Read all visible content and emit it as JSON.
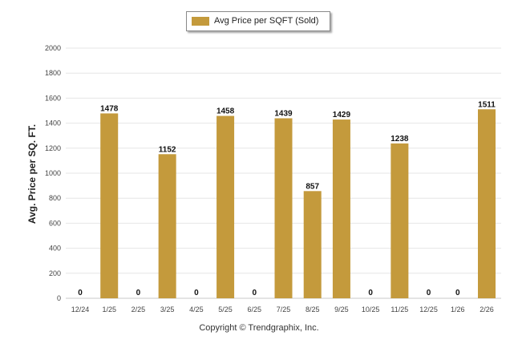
{
  "chart_data": {
    "type": "bar",
    "legend": "Avg Price per SQFT (Sold)",
    "ylabel": "Avg. Price per SQ. FT.",
    "xlabel": "",
    "categories": [
      "12/24",
      "1/25",
      "2/25",
      "3/25",
      "4/25",
      "5/25",
      "6/25",
      "7/25",
      "8/25",
      "9/25",
      "10/25",
      "11/25",
      "12/25",
      "1/26",
      "2/26"
    ],
    "values": [
      0,
      1478,
      0,
      1152,
      0,
      1458,
      0,
      1439,
      857,
      1429,
      0,
      1238,
      0,
      0,
      1511
    ],
    "ylim": [
      0,
      2000
    ],
    "yticks": [
      0,
      200,
      400,
      600,
      800,
      1000,
      1200,
      1400,
      1600,
      1800,
      2000
    ],
    "grid": true,
    "legend_position": "top-center",
    "bar_color": "#c49a3c"
  },
  "footer": "Copyright © Trendgraphix, Inc."
}
